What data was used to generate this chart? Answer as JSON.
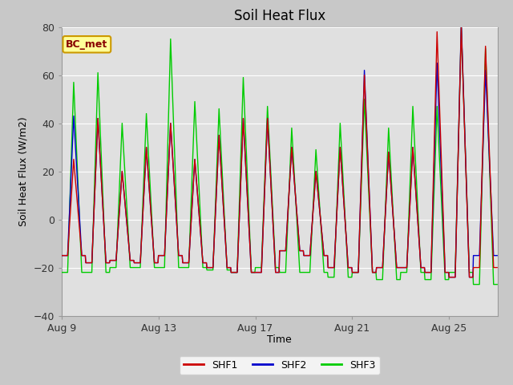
{
  "title": "Soil Heat Flux",
  "xlabel": "Time",
  "ylabel": "Soil Heat Flux (W/m2)",
  "ylim": [
    -40,
    80
  ],
  "yticks": [
    -40,
    -20,
    0,
    20,
    40,
    60,
    80
  ],
  "fig_facecolor": "#c8c8c8",
  "ax_facecolor": "#c8c8c8",
  "light_band_color": "#e0e0e0",
  "shf1_color": "#cc0000",
  "shf2_color": "#0000cc",
  "shf3_color": "#00cc00",
  "legend_labels": [
    "SHF1",
    "SHF2",
    "SHF3"
  ],
  "annotation_text": "BC_met",
  "annotation_bg": "#ffff99",
  "annotation_border": "#cc9900",
  "annotation_text_color": "#880000",
  "xticklabels": [
    "Aug 9",
    "Aug 13",
    "Aug 17",
    "Aug 21",
    "Aug 25"
  ],
  "n_days": 18,
  "n_per_day": 48,
  "shf1_peaks": [
    25,
    42,
    20,
    30,
    40,
    25,
    35,
    42,
    42,
    30,
    20,
    30,
    60,
    28,
    30,
    78,
    80,
    72
  ],
  "shf2_peaks": [
    43,
    42,
    20,
    30,
    40,
    25,
    35,
    42,
    42,
    30,
    20,
    30,
    62,
    28,
    30,
    65,
    82,
    62
  ],
  "shf3_peaks": [
    57,
    61,
    40,
    44,
    75,
    49,
    46,
    59,
    47,
    38,
    29,
    40,
    50,
    38,
    47,
    47,
    80,
    71
  ],
  "shf1_nights": [
    -15,
    -18,
    -17,
    -18,
    -15,
    -18,
    -20,
    -22,
    -22,
    -13,
    -15,
    -20,
    -22,
    -20,
    -20,
    -22,
    -24,
    -20
  ],
  "shf2_nights": [
    -15,
    -18,
    -17,
    -18,
    -15,
    -18,
    -20,
    -22,
    -22,
    -13,
    -15,
    -20,
    -22,
    -20,
    -20,
    -22,
    -24,
    -15
  ],
  "shf3_nights": [
    -22,
    -22,
    -20,
    -20,
    -20,
    -20,
    -21,
    -22,
    -20,
    -22,
    -22,
    -24,
    -22,
    -25,
    -22,
    -25,
    -22,
    -27
  ]
}
